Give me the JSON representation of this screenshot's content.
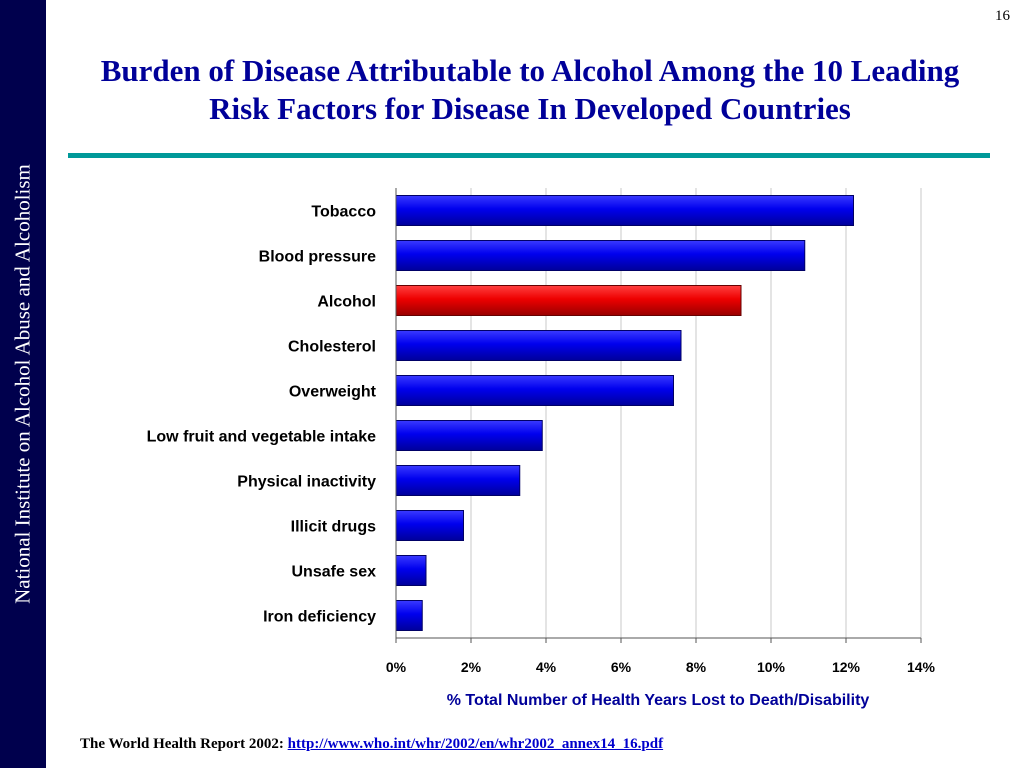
{
  "sidebar": {
    "text": "National Institute on Alcohol Abuse and Alcoholism"
  },
  "page_number": "16",
  "title": "Burden of Disease Attributable to Alcohol Among the 10 Leading Risk Factors for Disease In Developed Countries",
  "source": {
    "label": "The World Health Report 2002: ",
    "link": " http://www.who.int/whr/2002/en/whr2002_annex14_16.pdf"
  },
  "colors": {
    "title": "#000099",
    "sidebar": "#00004d",
    "rule": "#009999",
    "bar_default": "#0000ee",
    "bar_highlight": "#ee0000"
  },
  "chart_data": {
    "type": "bar",
    "orientation": "horizontal",
    "categories": [
      "Tobacco",
      "Blood pressure",
      "Alcohol",
      "Cholesterol",
      "Overweight",
      "Low fruit and vegetable intake",
      "Physical inactivity",
      "Illicit drugs",
      "Unsafe sex",
      "Iron deficiency"
    ],
    "values": [
      12.2,
      10.9,
      9.2,
      7.6,
      7.4,
      3.9,
      3.3,
      1.8,
      0.8,
      0.7
    ],
    "highlight": "Alcohol",
    "xlabel": "% Total Number of Health Years Lost to Death/Disability",
    "xlim": [
      0,
      14
    ],
    "xticks": [
      0,
      2,
      4,
      6,
      8,
      10,
      12,
      14
    ],
    "tick_labels": [
      "0%",
      "2%",
      "4%",
      "6%",
      "8%",
      "10%",
      "12%",
      "14%"
    ],
    "grid": "vertical"
  }
}
